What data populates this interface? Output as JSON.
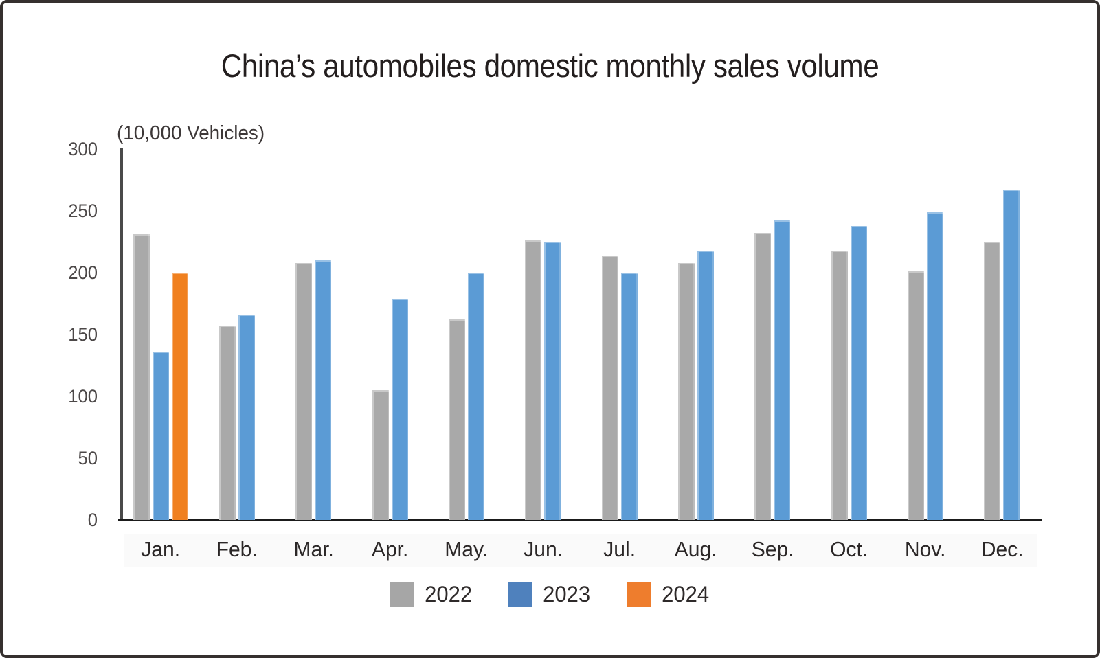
{
  "title": "China’s automobiles domestic monthly sales volume",
  "y_axis": {
    "unit_label": "(10,000 Vehicles)",
    "ticks": [
      300,
      250,
      200,
      150,
      100,
      50,
      0
    ]
  },
  "colors": {
    "series_2022": "#a9a9a9",
    "series_2023": "#5b9bd5",
    "series_2024": "#f0801f",
    "legend_2022": "#a6a6a6",
    "legend_2023": "#4f81bd",
    "legend_2024": "#ee7d2d",
    "axis": "#4a4a4a",
    "baseline": "#1b1b1b"
  },
  "chart_data": {
    "type": "bar",
    "title": "China’s automobiles domestic monthly sales volume",
    "unit": "10,000 Vehicles",
    "categories": [
      "Jan.",
      "Feb.",
      "Mar.",
      "Apr.",
      "May.",
      "Jun.",
      "Jul.",
      "Aug.",
      "Sep.",
      "Oct.",
      "Nov.",
      "Dec."
    ],
    "series": [
      {
        "name": "2022",
        "color": "#a9a9a9",
        "legend_color": "#a6a6a6",
        "values": [
          231,
          157,
          208,
          105,
          162,
          226,
          214,
          208,
          232,
          218,
          201,
          225
        ]
      },
      {
        "name": "2023",
        "color": "#5b9bd5",
        "legend_color": "#4f81bd",
        "values": [
          136,
          166,
          210,
          179,
          200,
          225,
          200,
          218,
          242,
          238,
          249,
          267
        ]
      },
      {
        "name": "2024",
        "color": "#f0801f",
        "legend_color": "#ee7d2d",
        "values": [
          200,
          null,
          null,
          null,
          null,
          null,
          null,
          null,
          null,
          null,
          null,
          null
        ]
      }
    ],
    "ylim": [
      0,
      300
    ],
    "y_tick_step": 50,
    "xlabel": "",
    "ylabel": "(10,000 Vehicles)",
    "grid": false,
    "legend_position": "bottom"
  }
}
